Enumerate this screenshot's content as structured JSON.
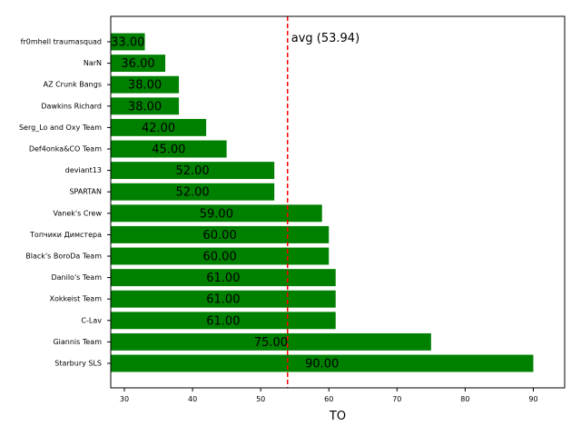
{
  "chart_data": {
    "type": "bar",
    "orientation": "horizontal",
    "categories": [
      "fr0mhell traumasquad",
      "NarN",
      "AZ Crunk Bangs",
      "Dawkins Richard",
      "Serg_Lo and Oxy Team",
      "Def4onka&CO Team",
      "deviant13",
      "SPARTAN",
      "Vanek's Crew",
      "Топчики Димстера",
      "Black's BoroDa Team",
      "Danilo's Team",
      "Xokkeist Team",
      "C-Lav",
      "Giannis Team",
      "Starbury SLS"
    ],
    "values": [
      33,
      36,
      38,
      38,
      42,
      45,
      52,
      52,
      59,
      60,
      60,
      61,
      61,
      61,
      75,
      90
    ],
    "value_labels": [
      "33.00",
      "36.00",
      "38.00",
      "38.00",
      "42.00",
      "45.00",
      "52.00",
      "52.00",
      "59.00",
      "60.00",
      "60.00",
      "61.00",
      "61.00",
      "61.00",
      "75.00",
      "90.00"
    ],
    "xlabel": "TO",
    "ylabel": "",
    "title": "",
    "xlim": [
      28,
      94.6
    ],
    "xticks": [
      30,
      40,
      50,
      60,
      70,
      80,
      90
    ],
    "xtick_labels": [
      "30",
      "40",
      "50",
      "60",
      "70",
      "80",
      "90"
    ],
    "bar_color": "#008000",
    "average": {
      "value": 53.94,
      "label": "avg (53.94)",
      "color": "#ff0000"
    },
    "grid": false
  }
}
